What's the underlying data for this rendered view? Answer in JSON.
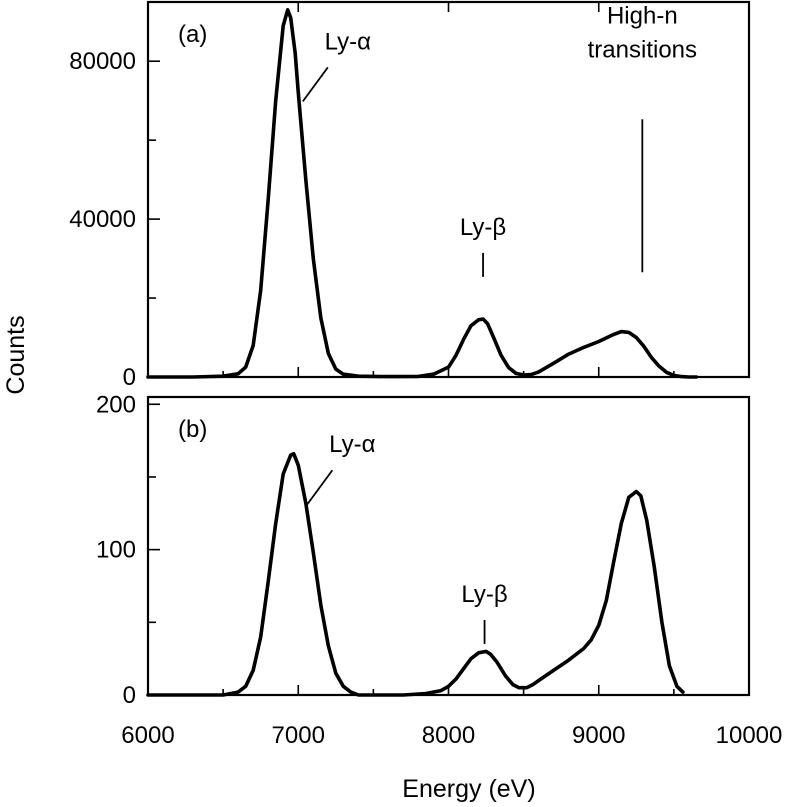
{
  "chart_data": [
    {
      "type": "line",
      "panel_label": "(a)",
      "xlim": [
        6000,
        10000
      ],
      "ylim": [
        0,
        95000
      ],
      "yticks": [
        0,
        40000,
        80000
      ],
      "yminor": [
        20000,
        60000
      ],
      "ylabel": "Counts",
      "xlabel": "",
      "series": [
        {
          "x": [
            6000,
            6300,
            6500,
            6600,
            6650,
            6700,
            6750,
            6800,
            6850,
            6900,
            6930,
            6950,
            6980,
            7000,
            7050,
            7100,
            7150,
            7200,
            7250,
            7300,
            7400,
            7600,
            7800,
            7900,
            8000,
            8050,
            8100,
            8150,
            8200,
            8230,
            8260,
            8300,
            8350,
            8400,
            8450,
            8500,
            8550,
            8600,
            8700,
            8800,
            8900,
            9000,
            9100,
            9150,
            9200,
            9250,
            9300,
            9350,
            9400,
            9450,
            9500,
            9550,
            9600,
            9650
          ],
          "y": [
            0,
            0,
            200,
            800,
            2500,
            8000,
            22000,
            45000,
            70000,
            89000,
            93000,
            91000,
            82000,
            72000,
            50000,
            30000,
            15000,
            6000,
            2000,
            700,
            200,
            100,
            150,
            700,
            2500,
            5500,
            9500,
            13000,
            14500,
            14700,
            13500,
            10000,
            5500,
            2400,
            900,
            500,
            600,
            1300,
            3500,
            5800,
            7500,
            9000,
            10800,
            11500,
            11300,
            10000,
            7800,
            5000,
            2800,
            1200,
            400,
            100,
            0,
            0
          ]
        }
      ],
      "annotations": [
        {
          "text": "Ly-α",
          "x": 7330,
          "y": 83000
        },
        {
          "text": "Ly-β",
          "x": 8230,
          "y": 36000
        },
        {
          "text": "High-n",
          "x": 9290,
          "y": 89500
        },
        {
          "text": "transitions",
          "x": 9290,
          "y": 81000
        }
      ]
    },
    {
      "type": "line",
      "panel_label": "(b)",
      "xlim": [
        6000,
        10000
      ],
      "ylim": [
        0,
        205
      ],
      "yticks": [
        0,
        100,
        200
      ],
      "yminor": [
        50,
        150
      ],
      "ylabel": "",
      "xlabel": "Energy (eV)",
      "xticks": [
        6000,
        7000,
        8000,
        9000,
        10000
      ],
      "xminor": [
        6500,
        7500,
        8500,
        9500
      ],
      "series": [
        {
          "x": [
            6000,
            6300,
            6500,
            6600,
            6650,
            6700,
            6750,
            6800,
            6850,
            6900,
            6950,
            6970,
            7000,
            7050,
            7100,
            7150,
            7200,
            7250,
            7300,
            7350,
            7400,
            7500,
            7700,
            7850,
            7950,
            8000,
            8050,
            8100,
            8150,
            8200,
            8250,
            8280,
            8320,
            8380,
            8430,
            8470,
            8520,
            8560,
            8600,
            8700,
            8800,
            8900,
            8950,
            9000,
            9050,
            9100,
            9150,
            9200,
            9250,
            9280,
            9320,
            9370,
            9420,
            9470,
            9520,
            9560
          ],
          "y": [
            0,
            0,
            0,
            2,
            6,
            17,
            40,
            78,
            118,
            152,
            165,
            166,
            158,
            132,
            98,
            62,
            34,
            15,
            6,
            2,
            0,
            0,
            0,
            1,
            3,
            6,
            11,
            18,
            25,
            29,
            30,
            28,
            23,
            13,
            7,
            5,
            5,
            7,
            10,
            17,
            24,
            32,
            38,
            48,
            65,
            92,
            118,
            136,
            140,
            137,
            120,
            88,
            50,
            20,
            6,
            2
          ]
        }
      ],
      "annotations": [
        {
          "text": "Ly-α",
          "x": 7360,
          "y": 167
        },
        {
          "text": "Ly-β",
          "x": 8240,
          "y": 64
        }
      ]
    }
  ]
}
